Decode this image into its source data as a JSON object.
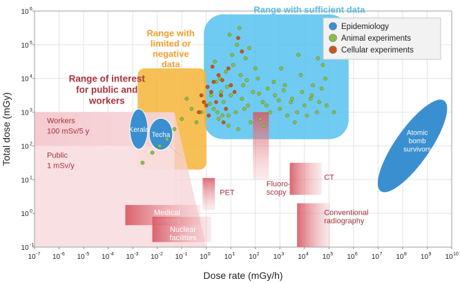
{
  "chart_data": {
    "type": "scatter",
    "x_scale": "log",
    "y_scale": "log",
    "xlabel": "Dose rate (mGy/h)",
    "ylabel": "Total dose (mGy)",
    "xlim_exp": [
      -7,
      10
    ],
    "ylim_exp": [
      -1,
      6
    ],
    "x_ticks": [
      {
        "base": "10",
        "exp": "-7"
      },
      {
        "base": "10",
        "exp": "-6"
      },
      {
        "base": "10",
        "exp": "-5"
      },
      {
        "base": "10",
        "exp": "-4"
      },
      {
        "base": "10",
        "exp": "-3"
      },
      {
        "base": "10",
        "exp": "-2"
      },
      {
        "base": "10",
        "exp": "-1"
      },
      {
        "base": "10",
        "exp": "0"
      },
      {
        "base": "10",
        "exp": "1"
      },
      {
        "base": "10",
        "exp": "2"
      },
      {
        "base": "10",
        "exp": "3"
      },
      {
        "base": "10",
        "exp": "4"
      },
      {
        "base": "10",
        "exp": "5"
      },
      {
        "base": "10",
        "exp": "6"
      },
      {
        "base": "10",
        "exp": "7"
      },
      {
        "base": "10",
        "exp": "8"
      },
      {
        "base": "10",
        "exp": "9"
      },
      {
        "base": "10",
        "exp": "10"
      }
    ],
    "y_ticks": [
      {
        "base": "10",
        "exp": "-1"
      },
      {
        "base": "10",
        "exp": "0"
      },
      {
        "base": "10",
        "exp": "1"
      },
      {
        "base": "10",
        "exp": "2"
      },
      {
        "base": "10",
        "exp": "3"
      },
      {
        "base": "10",
        "exp": "4"
      },
      {
        "base": "10",
        "exp": "5"
      },
      {
        "base": "10",
        "exp": "6"
      }
    ],
    "legend": {
      "placement": "top-right",
      "entries": [
        {
          "label": "Epidemiology",
          "color": "#3a8fd0"
        },
        {
          "label": "Animal experiments",
          "color": "#8bbd45"
        },
        {
          "label": "Cellular experiments",
          "color": "#c8561a"
        }
      ]
    },
    "regions": [
      {
        "label": "Range with sufficient data",
        "x_range": [
          -0.1,
          5.8
        ],
        "y_range": [
          2.2,
          5.9
        ],
        "color": "#56c2ee"
      },
      {
        "label": "Range with limited or negative data",
        "x_range": [
          -2.8,
          0
        ],
        "y_range": [
          1.3,
          4.3
        ],
        "color": "#f6b539"
      }
    ],
    "region_titles": [
      {
        "lines": [
          "Range with sufficient data"
        ],
        "color": "#55bfe9",
        "anchor": [
          4.2,
          5.95
        ]
      },
      {
        "lines": [
          "Range with",
          "limited or",
          "negative",
          "data"
        ],
        "color": "#f0a030",
        "anchor": [
          -1.45,
          5.25
        ]
      },
      {
        "lines": [
          "Range of interest",
          "for public and",
          "workers"
        ],
        "color": "#a9343f",
        "anchor": [
          -4.05,
          3.9
        ]
      }
    ],
    "bands": [
      {
        "label_lines": [
          "Workers",
          "100 mSv/5 y"
        ],
        "y_top": 3.0,
        "x_range": [
          -7,
          -1.3
        ]
      },
      {
        "label_lines": [
          "Public",
          "1 mSv/y"
        ],
        "y_top": 2.0,
        "x_range": [
          -7,
          -1.3
        ]
      }
    ],
    "exposures": [
      {
        "label": "PET",
        "x_range": [
          -0.15,
          0.35
        ],
        "y_range": [
          0.1,
          1.05
        ],
        "label_at": [
          0.55,
          0.55
        ]
      },
      {
        "label": "Fluoro-\nscopy",
        "x_range": [
          1.9,
          2.55
        ],
        "y_range": [
          1.0,
          3.0
        ],
        "label_at": [
          2.45,
          0.8
        ]
      },
      {
        "label": "CT",
        "x_range": [
          3.4,
          4.7
        ],
        "y_range": [
          0.55,
          1.5
        ],
        "label_at": [
          4.8,
          1.0
        ]
      },
      {
        "label": "Conventional\nradiography",
        "x_range": [
          3.7,
          5.05
        ],
        "y_range": [
          -1.0,
          0.3
        ],
        "label_at": [
          4.8,
          -0.05
        ]
      },
      {
        "label": "Medical\nworkers",
        "x_range": [
          -3.3,
          -0.25
        ],
        "y_range": [
          -0.35,
          0.25
        ],
        "label_at": [
          -1.6,
          -0.05
        ]
      },
      {
        "label": "Nuclear\nfacilities",
        "x_range": [
          -2.2,
          0.2
        ],
        "y_range": [
          -0.85,
          -0.1
        ],
        "label_at": [
          -0.95,
          -0.55
        ]
      }
    ],
    "epidemiology_studies": [
      {
        "label": "Kerala",
        "x": -2.75,
        "y": 2.5
      },
      {
        "label": "Techa",
        "x": -1.85,
        "y": 2.35
      },
      {
        "label": "Atomic\nbomb\nsurvivors",
        "x": 8.4,
        "y": 2.0
      }
    ],
    "animal_points": [
      [
        0.3,
        3.1
      ],
      [
        0.5,
        2.8
      ],
      [
        0.7,
        3.3
      ],
      [
        0.9,
        2.9
      ],
      [
        0.6,
        3.6
      ],
      [
        1.0,
        3.5
      ],
      [
        1.2,
        3.0
      ],
      [
        1.5,
        3.8
      ],
      [
        1.7,
        3.2
      ],
      [
        1.9,
        3.6
      ],
      [
        2.1,
        4.0
      ],
      [
        2.3,
        3.3
      ],
      [
        2.5,
        3.7
      ],
      [
        2.8,
        3.5
      ],
      [
        3.0,
        3.1
      ],
      [
        3.2,
        3.8
      ],
      [
        3.5,
        3.4
      ],
      [
        3.7,
        3.0
      ],
      [
        3.9,
        3.6
      ],
      [
        4.1,
        2.9
      ],
      [
        4.3,
        3.5
      ],
      [
        4.5,
        3.0
      ],
      [
        4.7,
        3.7
      ],
      [
        4.9,
        3.2
      ],
      [
        5.2,
        3.0
      ],
      [
        1.1,
        4.4
      ],
      [
        1.4,
        4.1
      ],
      [
        0.8,
        4.2
      ],
      [
        2.0,
        4.3
      ],
      [
        1.6,
        4.6
      ],
      [
        0.4,
        3.9
      ],
      [
        0.2,
        3.5
      ],
      [
        0.9,
        2.6
      ],
      [
        1.8,
        2.7
      ],
      [
        2.6,
        3.0
      ],
      [
        3.3,
        2.9
      ],
      [
        4.0,
        3.2
      ],
      [
        4.6,
        3.3
      ],
      [
        1.3,
        2.5
      ],
      [
        2.2,
        2.8
      ],
      [
        3.6,
        2.7
      ],
      [
        0.55,
        4.0
      ],
      [
        1.05,
        4.7
      ],
      [
        1.25,
        5.0
      ],
      [
        1.45,
        3.4
      ],
      [
        2.75,
        3.9
      ],
      [
        3.85,
        4.1
      ],
      [
        4.35,
        3.8
      ],
      [
        4.85,
        4.0
      ],
      [
        0.15,
        3.25
      ],
      [
        -0.2,
        3.0
      ],
      [
        -0.4,
        2.7
      ],
      [
        -0.6,
        3.1
      ],
      [
        -0.8,
        3.4
      ],
      [
        -1.0,
        2.8
      ],
      [
        -1.3,
        2.5
      ],
      [
        -1.6,
        2.2
      ],
      [
        -1.9,
        2.0
      ],
      [
        -2.2,
        1.8
      ],
      [
        -2.6,
        1.5
      ],
      [
        0.65,
        2.9
      ],
      [
        1.55,
        3.1
      ],
      [
        2.45,
        3.2
      ],
      [
        3.45,
        3.3
      ],
      [
        4.25,
        3.4
      ],
      [
        0.35,
        4.5
      ],
      [
        1.75,
        4.9
      ],
      [
        0.95,
        5.3
      ],
      [
        1.35,
        5.5
      ],
      [
        2.95,
        3.35
      ],
      [
        3.05,
        4.3
      ],
      [
        4.55,
        4.6
      ],
      [
        4.75,
        4.4
      ],
      [
        3.75,
        4.7
      ],
      [
        2.15,
        3.55
      ],
      [
        0.45,
        3.0
      ],
      [
        0.85,
        3.75
      ],
      [
        1.65,
        3.95
      ],
      [
        2.35,
        2.6
      ],
      [
        3.15,
        3.65
      ]
    ],
    "cell_points": [
      [
        0.0,
        3.2
      ],
      [
        0.2,
        3.6
      ],
      [
        0.4,
        3.3
      ],
      [
        0.1,
        2.9
      ],
      [
        0.3,
        3.9
      ],
      [
        0.6,
        3.5
      ],
      [
        0.8,
        3.1
      ],
      [
        1.0,
        3.8
      ],
      [
        0.5,
        4.1
      ],
      [
        0.7,
        2.7
      ],
      [
        -0.2,
        3.5
      ],
      [
        -0.3,
        3.0
      ],
      [
        0.9,
        4.3
      ],
      [
        1.15,
        3.6
      ],
      [
        0.25,
        4.35
      ],
      [
        1.45,
        4.8
      ],
      [
        1.3,
        5.2
      ],
      [
        0.05,
        3.75
      ],
      [
        -0.1,
        3.3
      ],
      [
        0.65,
        3.95
      ]
    ]
  }
}
